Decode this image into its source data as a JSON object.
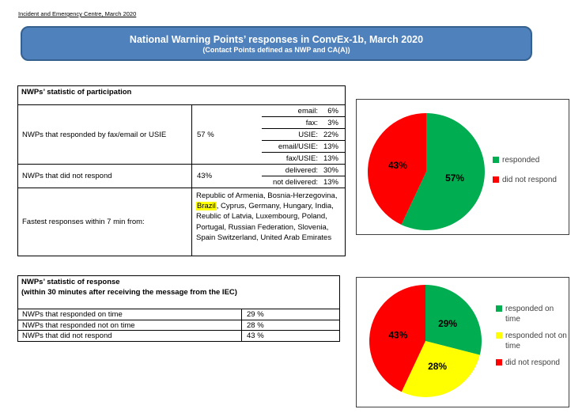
{
  "page": {
    "header_note": "Incident and Emergency Centre, March 2020",
    "banner": {
      "title": "National Warning Points’ responses in ConvEx-1b, March 2020",
      "subtitle": "(Contact Points defined as NWP and CA(A))",
      "bg_color": "#4F81BD",
      "border_color": "#36618E"
    }
  },
  "participation_table": {
    "header": "NWPs’ statistic of participation",
    "rows": [
      {
        "label": "NWPs that responded by fax/email or USIE",
        "value": "57 %",
        "breakdown": [
          {
            "label": "email:",
            "value": "6%"
          },
          {
            "label": "fax:",
            "value": "3%"
          },
          {
            "label": "USIE:",
            "value": "22%"
          },
          {
            "label": "email/USIE:",
            "value": "13%"
          },
          {
            "label": "fax/USIE:",
            "value": "13%"
          }
        ]
      },
      {
        "label": "NWPs that did not respond",
        "value": "43%",
        "breakdown": [
          {
            "label": "delivered:",
            "value": "30%"
          },
          {
            "label": "not delivered:",
            "value": "13%"
          }
        ]
      },
      {
        "label": "Fastest responses within 7 min from:",
        "countries_before": "Republic of Armenia, Bosnia-Herzegovina, ",
        "countries_highlight": "Brazil",
        "countries_after": ", Cyprus, Germany, Hungary, India, Reublic of Latvia, Luxembourg, Poland, Portugal, Russian Federation, Slovenia, Spain Switzerland, United Arab Emirates",
        "highlight_color": "#FFFF00"
      }
    ]
  },
  "response_table": {
    "header_line1": "NWPs’ statistic of response",
    "header_line2": "(within 30 minutes after receiving the message from the IEC)",
    "rows": [
      {
        "label": "NWPs that responded on time",
        "value": "29 %"
      },
      {
        "label": "NWPs that responded not on time",
        "value": "28 %"
      },
      {
        "label": "NWPs that did not respond",
        "value": "43 %"
      }
    ]
  },
  "chart_data": [
    {
      "type": "pie",
      "title": "",
      "labels": [
        "responded",
        "did not respond"
      ],
      "values": [
        57,
        43
      ],
      "data_labels": [
        "57%",
        "43%"
      ],
      "colors": [
        "#00AD50",
        "#FF0000"
      ],
      "legend_position": "right",
      "start_angle_deg": 0,
      "direction": "clockwise"
    },
    {
      "type": "pie",
      "title": "",
      "labels": [
        "responded on time",
        "responded not on time",
        "did not respond"
      ],
      "values": [
        29,
        28,
        43
      ],
      "data_labels": [
        "29%",
        "28%",
        "43%"
      ],
      "colors": [
        "#00AD50",
        "#FFFF00",
        "#FF0000"
      ],
      "legend_position": "right",
      "start_angle_deg": 0,
      "direction": "clockwise"
    }
  ]
}
